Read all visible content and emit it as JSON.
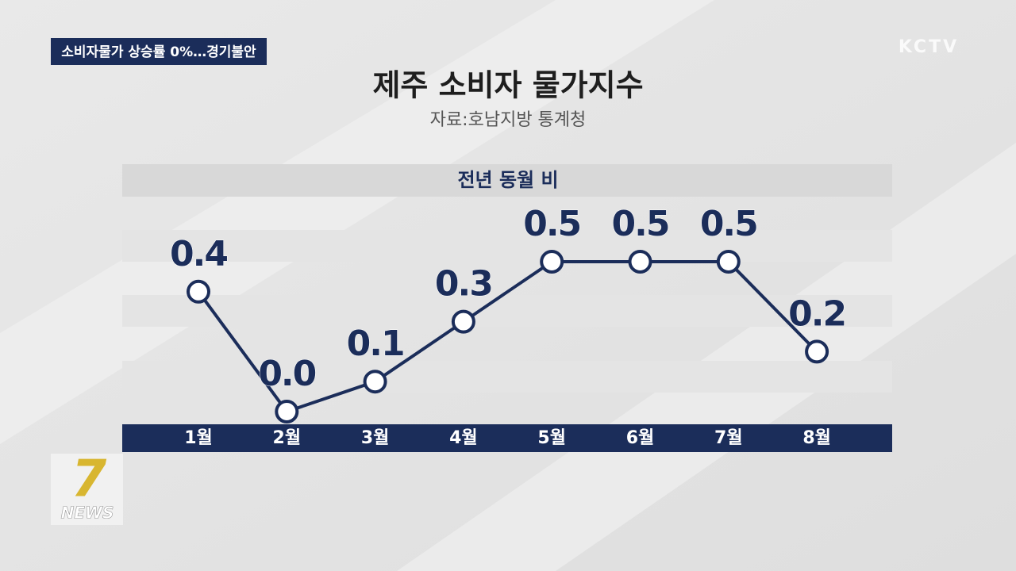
{
  "headline": "소비자물가 상승률 0%…경기불안",
  "channel_logo": "KCTV",
  "program_logo": {
    "number": "7",
    "text": "NEWS"
  },
  "chart_data": {
    "type": "line",
    "title": "제주 소비자 물가지수",
    "subtitle": "자료:호남지방 통계청",
    "y_label": "전년 동월 비",
    "categories": [
      "1월",
      "2월",
      "3월",
      "4월",
      "5월",
      "6월",
      "7월",
      "8월"
    ],
    "values": [
      0.4,
      0.0,
      0.1,
      0.3,
      0.5,
      0.5,
      0.5,
      0.2
    ],
    "value_labels": [
      "0.4",
      "0.0",
      "0.1",
      "0.3",
      "0.5",
      "0.5",
      "0.5",
      "0.2"
    ],
    "color": "#1b2d5a"
  }
}
